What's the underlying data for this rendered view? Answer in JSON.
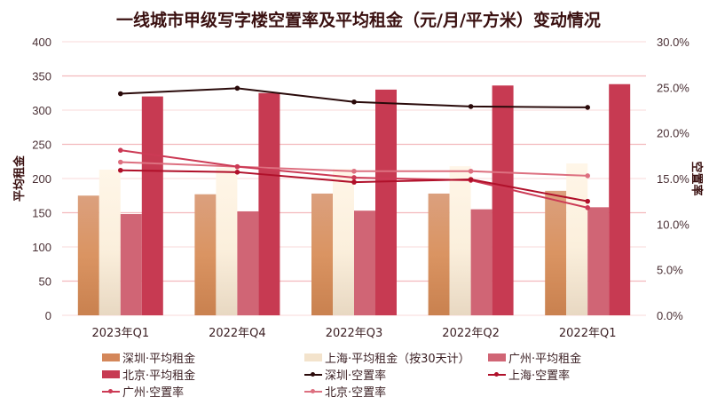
{
  "chart_data": {
    "type": "bar+line",
    "title": "一线城市甲级写字楼空置率及平均租金（元/月/平方米）变动情况",
    "categories": [
      "2023年Q1",
      "2022年Q4",
      "2022年Q3",
      "2022年Q2",
      "2022年Q1"
    ],
    "ylabel_left": "平均租金",
    "ylabel_right": "空置率",
    "ylim_left": [
      0,
      400
    ],
    "ylim_right": [
      0,
      30
    ],
    "yticks_left": [
      "0",
      "50",
      "100",
      "150",
      "200",
      "250",
      "300",
      "350",
      "400"
    ],
    "yticks_right": [
      "0.0%",
      "5.0%",
      "10.0%",
      "15.0%",
      "20.0%",
      "25.0%",
      "30.0%"
    ],
    "grid": true,
    "legend_position": "bottom",
    "bar_series": [
      {
        "name": "深圳·平均租金",
        "color": "#d4875a",
        "values": [
          175,
          177,
          178,
          178,
          182
        ]
      },
      {
        "name": "上海·平均租金（按30天计）",
        "color": "#f6e6d0",
        "values": [
          213,
          216,
          214,
          218,
          222
        ]
      },
      {
        "name": "广州·平均租金",
        "color": "#d06575",
        "values": [
          148,
          152,
          153,
          155,
          158
        ]
      },
      {
        "name": "北京·平均租金",
        "color": "#c73a52",
        "values": [
          320,
          325,
          330,
          336,
          338
        ]
      }
    ],
    "line_series": [
      {
        "name": "深圳·空置率",
        "color": "#2a0a0a",
        "values": [
          24.3,
          24.9,
          23.4,
          22.9,
          22.8
        ]
      },
      {
        "name": "上海·空置率",
        "color": "#b0102a",
        "values": [
          15.9,
          15.7,
          14.6,
          14.9,
          12.5
        ]
      },
      {
        "name": "广州·空置率",
        "color": "#cc3a55",
        "values": [
          18.1,
          16.3,
          15.1,
          14.8,
          11.8
        ]
      },
      {
        "name": "北京·空置率",
        "color": "#dd7080",
        "values": [
          16.8,
          16.3,
          15.8,
          15.8,
          15.3
        ]
      }
    ]
  },
  "legend": [
    {
      "label": "深圳·平均租金",
      "kind": "bar",
      "color": "#d4875a"
    },
    {
      "label": "上海·平均租金（按30天计）",
      "kind": "bar",
      "color": "#f3e3cc"
    },
    {
      "label": "广州·平均租金",
      "kind": "bar",
      "color": "#d06575"
    },
    {
      "label": "北京·平均租金",
      "kind": "bar",
      "color": "#c73a52"
    },
    {
      "label": "深圳·空置率",
      "kind": "line",
      "color": "#2a0a0a"
    },
    {
      "label": "上海·空置率",
      "kind": "line",
      "color": "#b0102a"
    },
    {
      "label": "广州·空置率",
      "kind": "line",
      "color": "#cc3a55"
    },
    {
      "label": "北京·空置率",
      "kind": "line",
      "color": "#dd7080"
    }
  ]
}
